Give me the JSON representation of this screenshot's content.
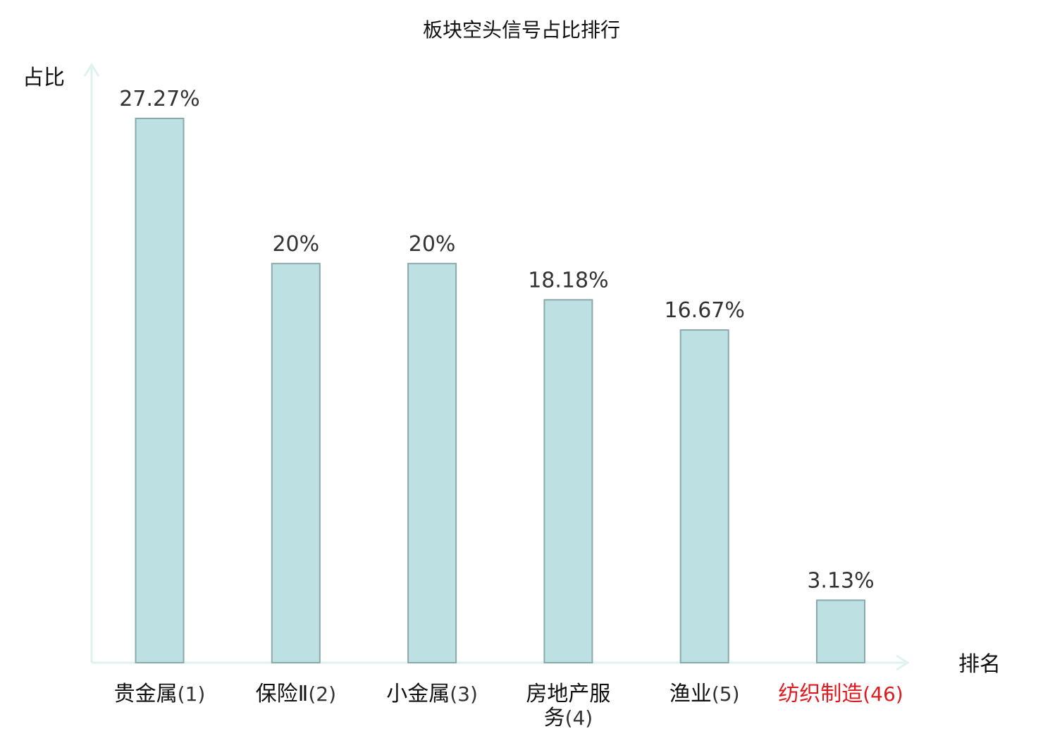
{
  "chart_data": {
    "type": "bar",
    "title": "板块空头信号占比排行",
    "ylabel": "占比",
    "xlabel": "排名",
    "ylim": [
      0,
      30
    ],
    "grid": false,
    "colors": {
      "bar_fill": "#bde0e3",
      "bar_stroke": "#8aa9ab",
      "axis": "#e0f2ef",
      "value_label": "#333333",
      "tick_label": "#111111",
      "highlight": "#e0191e"
    },
    "categories": [
      {
        "name_lines": [
          "贵金属"
        ],
        "rank": "(1)",
        "highlight": false
      },
      {
        "name_lines": [
          "保险Ⅱ"
        ],
        "rank": "(2)",
        "highlight": false
      },
      {
        "name_lines": [
          "小金属"
        ],
        "rank": "(3)",
        "highlight": false
      },
      {
        "name_lines": [
          "房地产服",
          "务"
        ],
        "rank": "(4)",
        "highlight": false
      },
      {
        "name_lines": [
          "渔业"
        ],
        "rank": "(5)",
        "highlight": false
      },
      {
        "name_lines": [
          "纺织制造"
        ],
        "rank": "(46)",
        "highlight": true
      }
    ],
    "values": [
      27.27,
      20,
      20,
      18.18,
      16.67,
      3.13
    ],
    "value_labels": [
      "27.27%",
      "20%",
      "20%",
      "18.18%",
      "16.67%",
      "3.13%"
    ]
  }
}
